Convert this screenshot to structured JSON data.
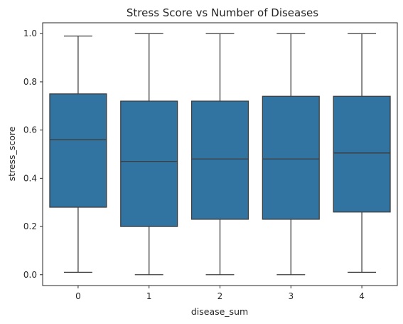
{
  "chart_data": {
    "type": "boxplot",
    "title": "Stress Score vs Number of Diseases",
    "xlabel": "disease_sum",
    "ylabel": "stress_score",
    "categories": [
      "0",
      "1",
      "2",
      "3",
      "4"
    ],
    "yticks": [
      "0.0",
      "0.2",
      "0.4",
      "0.6",
      "0.8",
      "1.0"
    ],
    "ylim": [
      -0.045,
      1.045
    ],
    "grid": false,
    "box_color": "#3274a1",
    "line_color": "#3d3d3d",
    "boxes": [
      {
        "category": "0",
        "whisker_low": 0.01,
        "q1": 0.28,
        "median": 0.56,
        "q3": 0.75,
        "whisker_high": 0.99
      },
      {
        "category": "1",
        "whisker_low": 0.0,
        "q1": 0.2,
        "median": 0.47,
        "q3": 0.72,
        "whisker_high": 1.0
      },
      {
        "category": "2",
        "whisker_low": 0.0,
        "q1": 0.23,
        "median": 0.48,
        "q3": 0.72,
        "whisker_high": 1.0
      },
      {
        "category": "3",
        "whisker_low": 0.0,
        "q1": 0.23,
        "median": 0.48,
        "q3": 0.74,
        "whisker_high": 1.0
      },
      {
        "category": "4",
        "whisker_low": 0.01,
        "q1": 0.26,
        "median": 0.505,
        "q3": 0.74,
        "whisker_high": 1.0
      }
    ]
  }
}
